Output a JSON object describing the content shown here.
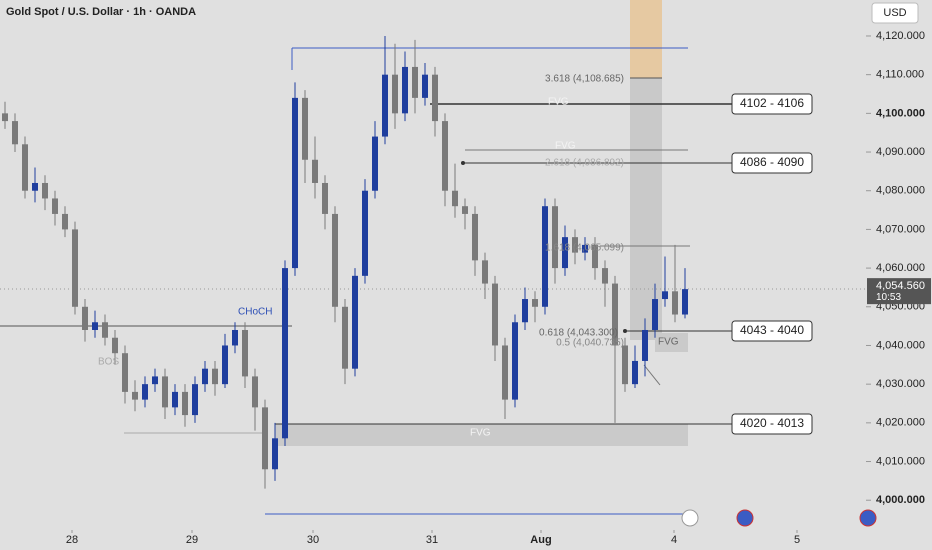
{
  "chart_data": {
    "type": "candlestick",
    "title": "Gold Spot / U.S. Dollar · 1h · OANDA",
    "currency": "USD",
    "x": [
      0,
      1,
      2,
      3,
      4,
      5,
      6,
      7,
      8,
      9,
      10,
      11,
      12,
      13,
      14,
      15,
      16,
      17,
      18,
      19,
      20,
      21,
      22,
      23,
      24,
      25,
      26,
      27,
      28,
      29,
      30,
      31,
      32,
      33,
      34,
      35,
      36,
      37,
      38,
      39,
      40,
      41,
      42,
      43,
      44,
      45,
      46,
      47,
      48,
      49,
      50,
      51,
      52,
      53,
      54,
      55,
      56,
      57,
      58,
      59,
      60,
      61,
      62,
      63,
      64,
      65,
      66,
      67,
      68
    ],
    "open": [
      4100,
      4098,
      4092,
      4080,
      4082,
      4078,
      4074,
      4070,
      4050,
      4044,
      4046,
      4042,
      4038,
      4028,
      4026,
      4030,
      4032,
      4024,
      4028,
      4022,
      4030,
      4034,
      4030,
      4040,
      4044,
      4032,
      4024,
      4008,
      4016,
      4060,
      4104,
      4088,
      4082,
      4074,
      4050,
      4034,
      4058,
      4080,
      4094,
      4110,
      4100,
      4112,
      4104,
      4110,
      4098,
      4080,
      4076,
      4074,
      4062,
      4056,
      4040,
      4026,
      4046,
      4052,
      4050,
      4076,
      4060,
      4068,
      4064,
      4066,
      4060,
      4056,
      4040,
      4030,
      4036,
      4044,
      4052,
      4054,
      4048
    ],
    "high": [
      4103,
      4100,
      4094,
      4086,
      4084,
      4080,
      4076,
      4072,
      4052,
      4049,
      4048,
      4044,
      4040,
      4031,
      4032,
      4034,
      4034,
      4030,
      4030,
      4032,
      4036,
      4036,
      4043,
      4046,
      4046,
      4034,
      4026,
      4020,
      4062,
      4108,
      4106,
      4094,
      4084,
      4076,
      4052,
      4060,
      4083,
      4098,
      4120,
      4118,
      4116,
      4119,
      4113,
      4112,
      4100,
      4087,
      4078,
      4076,
      4064,
      4058,
      4042,
      4048,
      4055,
      4054,
      4078,
      4078,
      4071,
      4070,
      4068,
      4068,
      4062,
      4058,
      4042,
      4040,
      4047,
      4056,
      4063,
      4066,
      4060
    ],
    "low": [
      4096,
      4090,
      4078,
      4077,
      4075,
      4071,
      4068,
      4048,
      4041,
      4042,
      4040,
      4035,
      4025,
      4023,
      4024,
      4028,
      4021,
      4022,
      4019,
      4020,
      4028,
      4027,
      4029,
      4038,
      4029,
      4018,
      4003,
      4005,
      4014,
      4058,
      4082,
      4078,
      4070,
      4046,
      4030,
      4032,
      4056,
      4078,
      4092,
      4096,
      4098,
      4100,
      4102,
      4094,
      4076,
      4073,
      4070,
      4058,
      4052,
      4036,
      4021,
      4024,
      4044,
      4046,
      4048,
      4056,
      4058,
      4061,
      4062,
      4057,
      4050,
      4020,
      4028,
      4029,
      4032,
      4042,
      4050,
      4046,
      4047
    ],
    "close": [
      4098,
      4092,
      4080,
      4082,
      4078,
      4074,
      4070,
      4050,
      4044,
      4046,
      4042,
      4038,
      4028,
      4026,
      4030,
      4032,
      4024,
      4028,
      4022,
      4030,
      4034,
      4030,
      4040,
      4044,
      4032,
      4024,
      4008,
      4016,
      4060,
      4104,
      4088,
      4082,
      4074,
      4050,
      4034,
      4058,
      4080,
      4094,
      4110,
      4100,
      4112,
      4104,
      4110,
      4098,
      4080,
      4076,
      4074,
      4062,
      4056,
      4040,
      4026,
      4046,
      4052,
      4050,
      4076,
      4060,
      4068,
      4064,
      4066,
      4060,
      4056,
      4040,
      4030,
      4036,
      4044,
      4052,
      4054,
      4048,
      4054.56
    ],
    "up_color": "#1f3e9e",
    "down_color": "#7a7a7a",
    "xlim": [
      -0.5,
      86.1
    ],
    "xticks": [
      {
        "value": 6.7,
        "label": "28"
      },
      {
        "value": 18.7,
        "label": "29"
      },
      {
        "value": 30.8,
        "label": "30"
      },
      {
        "value": 42.7,
        "label": "31"
      },
      {
        "value": 53.6,
        "label": "Aug"
      },
      {
        "value": 66.9,
        "label": "4"
      },
      {
        "value": 79.2,
        "label": "5"
      }
    ],
    "ylim": [
      3992.3,
      4129.3
    ],
    "yticks": [
      {
        "value": 4000,
        "label": "4,000.000"
      },
      {
        "value": 4010,
        "label": "4,010.000"
      },
      {
        "value": 4020,
        "label": "4,020.000"
      },
      {
        "value": 4030,
        "label": "4,030.000"
      },
      {
        "value": 4040,
        "label": "4,040.000"
      },
      {
        "value": 4050,
        "label": "4,050.000"
      },
      {
        "value": 4060,
        "label": "4,060.000"
      },
      {
        "value": 4070,
        "label": "4,070.000"
      },
      {
        "value": 4080,
        "label": "4,080.000"
      },
      {
        "value": 4090,
        "label": "4,090.000"
      },
      {
        "value": 4100,
        "label": "4,100.000"
      },
      {
        "value": 4110,
        "label": "4,110.000"
      },
      {
        "value": 4120,
        "label": "4,120.000"
      }
    ],
    "price_label": {
      "value": 4054.56,
      "label": "4,054.560"
    },
    "countdown": "10:53",
    "levels": [
      "4102 - 4106",
      "4086 - 4090",
      "4043 - 4040",
      "4020 - 4013"
    ],
    "annotations": [
      "CHoCH",
      "BOS",
      "FVG",
      "FVG",
      "FVG",
      "FVG",
      "3.618 (4,108.685)",
      "2.618 (4,086.892)",
      "1.618 (4,065.099)",
      "0.618 (4,043.300)",
      "0.5 (4,040.735)"
    ]
  }
}
